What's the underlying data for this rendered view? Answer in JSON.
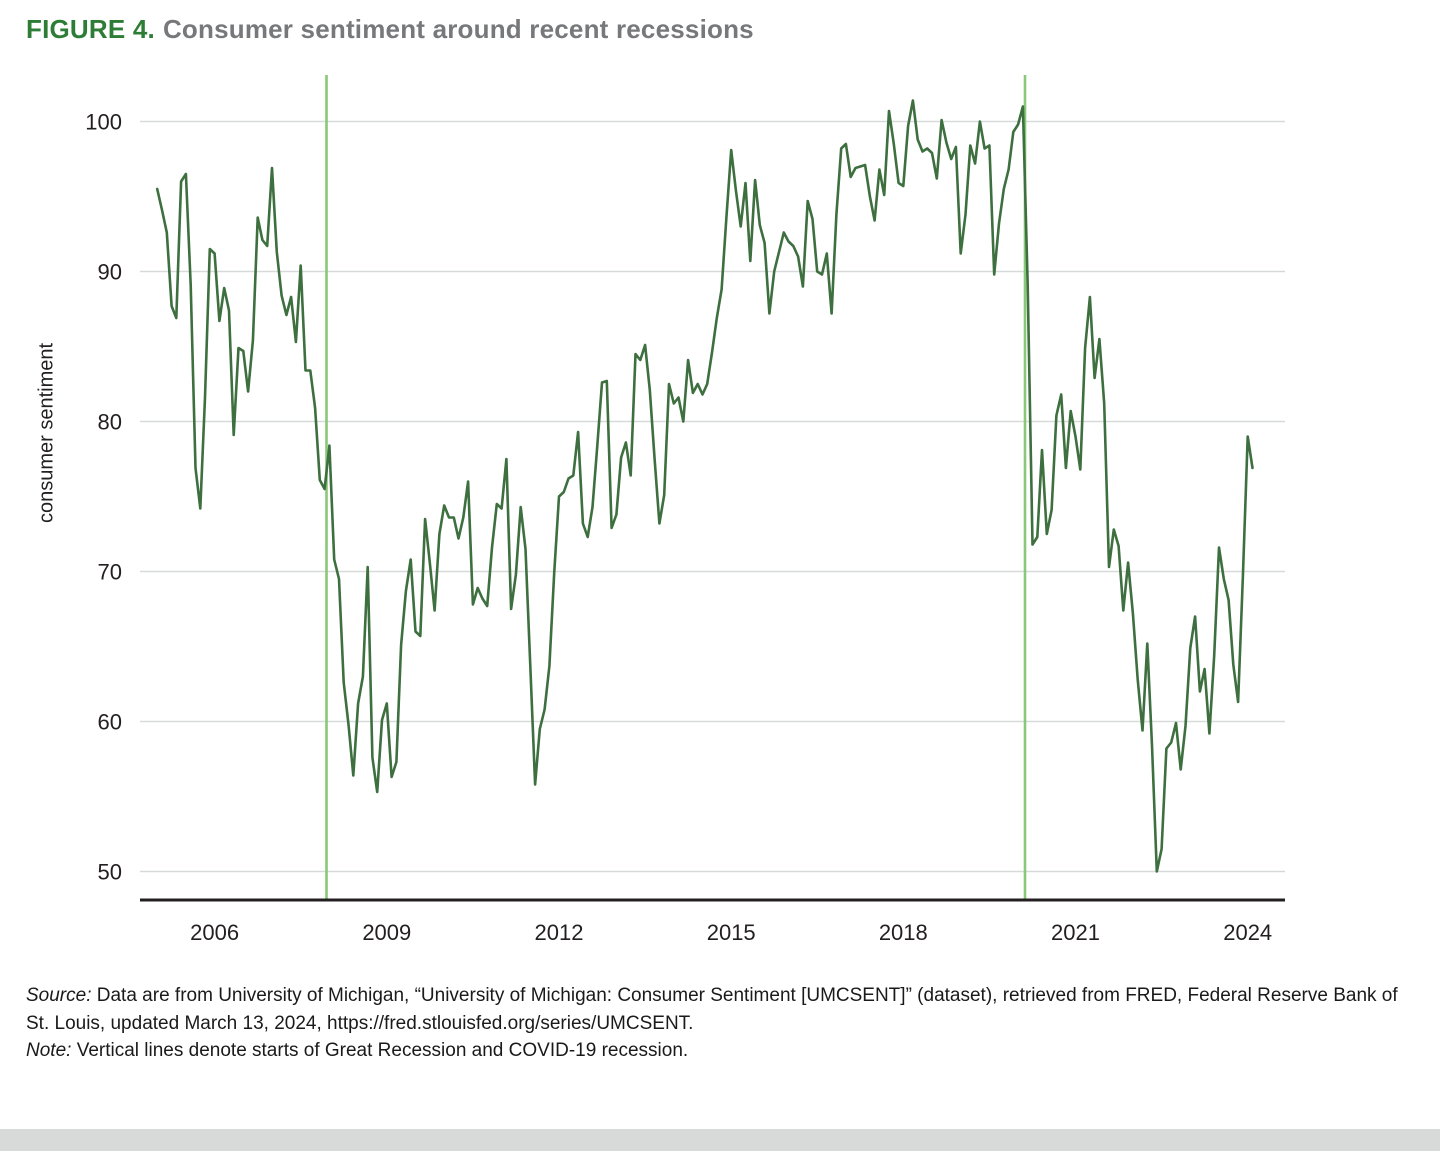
{
  "title": {
    "label": "FIGURE 4.",
    "text": "Consumer sentiment around recent recessions"
  },
  "colors": {
    "line": "#3d6f3f",
    "recession": "#89c779",
    "grid": "#d8d9da",
    "axis": "#231f20",
    "text": "#231f20",
    "title_label": "#2e7d36",
    "title_text": "#77787b"
  },
  "chart_data": {
    "type": "line",
    "title": "Consumer sentiment around recent recessions",
    "xlabel": "",
    "ylabel": "consumer sentiment",
    "x_ticks": [
      2006,
      2009,
      2012,
      2015,
      2018,
      2021,
      2024
    ],
    "y_ticks": [
      50,
      60,
      70,
      80,
      90,
      100
    ],
    "xlim": [
      2004.7,
      2024.65
    ],
    "ylim": [
      48.1,
      103.1
    ],
    "grid": "horizontal-only",
    "legend": "none",
    "recession_starts": [
      2007.95,
      2020.12
    ],
    "series": [
      {
        "name": "University of Michigan Consumer Sentiment (UMCSENT), monthly",
        "start_year": 2005,
        "start_month": 1,
        "values": [
          95.5,
          94.1,
          92.6,
          87.7,
          86.9,
          96.0,
          96.5,
          89.1,
          76.9,
          74.2,
          81.6,
          91.5,
          91.2,
          86.7,
          88.9,
          87.4,
          79.1,
          84.9,
          84.7,
          82.0,
          85.4,
          93.6,
          92.1,
          91.7,
          96.9,
          91.3,
          88.4,
          87.1,
          88.3,
          85.3,
          90.4,
          83.4,
          83.4,
          80.9,
          76.1,
          75.5,
          78.4,
          70.8,
          69.5,
          62.6,
          59.8,
          56.4,
          61.2,
          63.0,
          70.3,
          57.6,
          55.3,
          60.1,
          61.2,
          56.3,
          57.3,
          65.1,
          68.7,
          70.8,
          66.0,
          65.7,
          73.5,
          70.6,
          67.4,
          72.5,
          74.4,
          73.6,
          73.6,
          72.2,
          73.6,
          76.0,
          67.8,
          68.9,
          68.2,
          67.7,
          71.6,
          74.5,
          74.2,
          77.5,
          67.5,
          69.8,
          74.3,
          71.5,
          63.7,
          55.8,
          59.5,
          60.8,
          63.7,
          69.9,
          75.0,
          75.3,
          76.2,
          76.4,
          79.3,
          73.2,
          72.3,
          74.3,
          78.3,
          82.6,
          82.7,
          72.9,
          73.8,
          77.6,
          78.6,
          76.4,
          84.5,
          84.1,
          85.1,
          82.1,
          77.5,
          73.2,
          75.1,
          82.5,
          81.2,
          81.6,
          80.0,
          84.1,
          81.9,
          82.5,
          81.8,
          82.5,
          84.6,
          86.9,
          88.8,
          93.6,
          98.1,
          95.4,
          93.0,
          95.9,
          90.7,
          96.1,
          93.1,
          91.9,
          87.2,
          90.0,
          91.3,
          92.6,
          92.0,
          91.7,
          91.0,
          89.0,
          94.7,
          93.5,
          90.0,
          89.8,
          91.2,
          87.2,
          93.8,
          98.2,
          98.5,
          96.3,
          96.9,
          97.0,
          97.1,
          95.0,
          93.4,
          96.8,
          95.1,
          100.7,
          98.5,
          95.9,
          95.7,
          99.7,
          101.4,
          98.8,
          98.0,
          98.2,
          97.9,
          96.2,
          100.1,
          98.6,
          97.5,
          98.3,
          91.2,
          93.8,
          98.4,
          97.2,
          100.0,
          98.2,
          98.4,
          89.8,
          93.2,
          95.5,
          96.8,
          99.3,
          99.8,
          101.0,
          89.1,
          71.8,
          72.3,
          78.1,
          72.5,
          74.1,
          80.4,
          81.8,
          76.9,
          80.7,
          79.0,
          76.8,
          84.9,
          88.3,
          82.9,
          85.5,
          81.2,
          70.3,
          72.8,
          71.7,
          67.4,
          70.6,
          67.2,
          62.8,
          59.4,
          65.2,
          58.4,
          50.0,
          51.5,
          58.2,
          58.6,
          59.9,
          56.8,
          59.7,
          64.9,
          67.0,
          62.0,
          63.5,
          59.2,
          64.4,
          71.6,
          69.5,
          68.1,
          63.8,
          61.3,
          69.7,
          79.0,
          76.9
        ]
      }
    ]
  },
  "caption": {
    "source_label": "Source:",
    "source_text": " Data are from University of Michigan, “University of Michigan: Consumer Sentiment [UMCSENT]” (dataset), retrieved from FRED, Federal Reserve Bank of St. Louis, updated March 13, 2024, https://fred.stlouisfed.org/series/UMCSENT.",
    "note_label": "Note:",
    "note_text": " Vertical lines denote starts of Great Recession and COVID-19 recession."
  }
}
